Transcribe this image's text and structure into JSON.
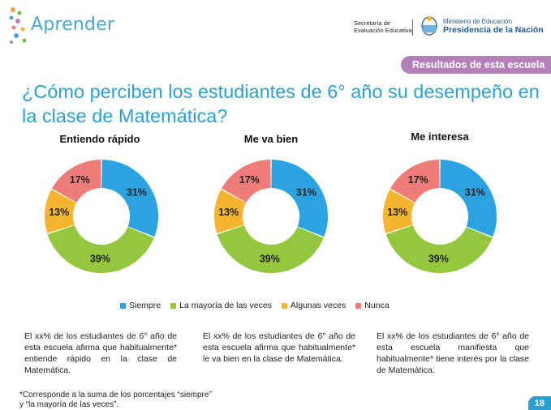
{
  "header": {
    "app_name": "Aprender",
    "secretaria": [
      "Secretaría de",
      "Evaluación Educativa"
    ],
    "ministerio_line1": "Ministerio de Educación",
    "ministerio_line2": "Presidencia de la Nación"
  },
  "banner": "Resultados de esta escuela",
  "title": "¿Cómo perciben los estudiantes de 6° año su desempeño en la clase de Matemática?",
  "colors": {
    "Siempre": "#2ba3e0",
    "La mayoría de las veces": "#93c83e",
    "Algunas veces": "#f5b52e",
    "Nunca": "#ee7c79",
    "accent": "#2aa0d4",
    "banner": "#b57fb9"
  },
  "chart_data": [
    {
      "type": "pie",
      "title": "Entiendo rápido",
      "categories": [
        "Siempre",
        "La mayoría de las veces",
        "Algunas veces",
        "Nunca"
      ],
      "values": [
        31,
        39,
        13,
        17
      ],
      "labels": [
        "31%",
        "39%",
        "13%",
        "17%"
      ]
    },
    {
      "type": "pie",
      "title": "Me va bien",
      "categories": [
        "Siempre",
        "La mayoría de las veces",
        "Algunas veces",
        "Nunca"
      ],
      "values": [
        31,
        39,
        13,
        17
      ],
      "labels": [
        "31%",
        "39%",
        "13%",
        "17%"
      ]
    },
    {
      "type": "pie",
      "title": "Me interesa",
      "categories": [
        "Siempre",
        "La mayoría de las veces",
        "Algunas veces",
        "Nunca"
      ],
      "values": [
        31,
        39,
        13,
        17
      ],
      "labels": [
        "31%",
        "39%",
        "13%",
        "17%"
      ]
    }
  ],
  "legend": [
    "Siempre",
    "La mayoría de las veces",
    "Algunas veces",
    "Nunca"
  ],
  "descriptions": [
    "El xx% de los estudiantes de 6° año de esta escuela afirma que habitualmente* entiende rápido en la clase de Matemática.",
    "El xx% de los estudiantes de 6° año de esta escuela afirma que habitualmente* le va bien en la clase de Matemática.",
    "El xx% de los estudiantes de 6° año de esta escuela manifiesta que habitualmente* tiene interés por la clase de Matemática."
  ],
  "footnote": "*Corresponde a la suma de los porcentajes “siempre” y “la mayoría de las veces”.",
  "page_number": "18"
}
